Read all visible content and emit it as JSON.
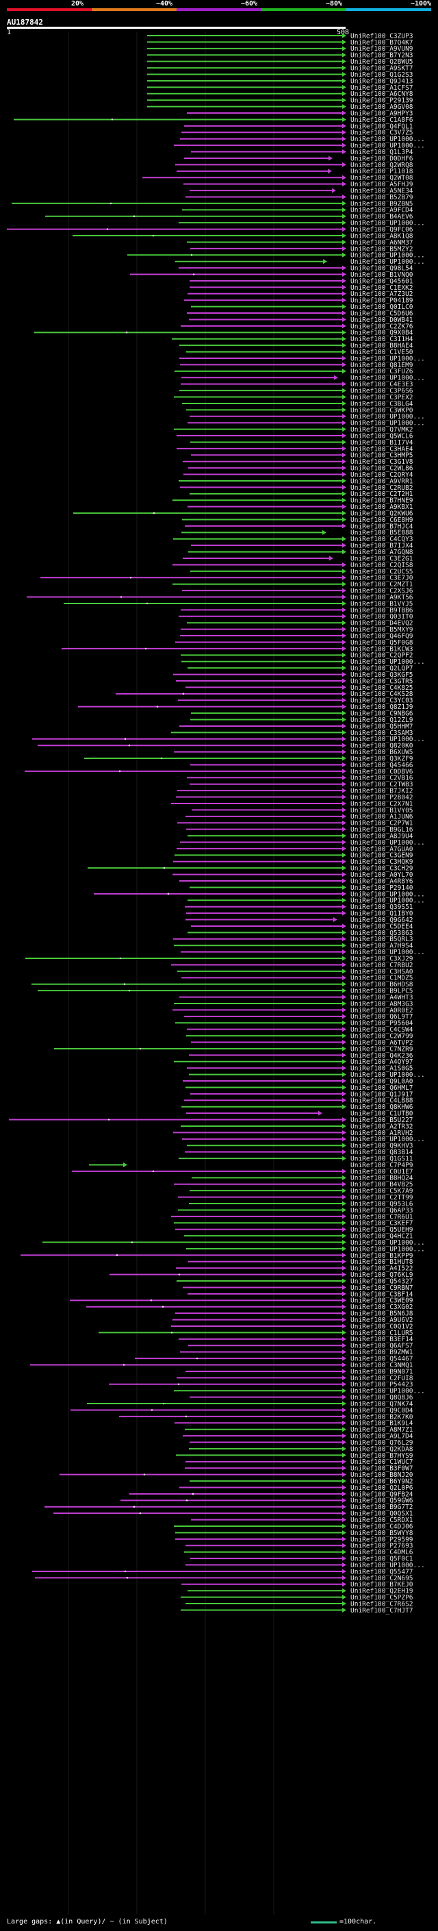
{
  "colorbar": {
    "segments": [
      {
        "label": "20%",
        "color": "#e0102a"
      },
      {
        "label": "~40%",
        "color": "#e0781e"
      },
      {
        "label": "~60%",
        "color": "#a020c8"
      },
      {
        "label": "~80%",
        "color": "#20b020"
      },
      {
        "label": "~100%",
        "color": "#10b0e0"
      }
    ]
  },
  "query": {
    "id": "AU187842",
    "start": "1",
    "end": "508"
  },
  "colors": {
    "hit_green": "#49c93b",
    "hit_magenta": "#c43ed6",
    "label": "#e6e6e6",
    "scale": "#30c08a"
  },
  "hits": [
    "UniRef100_C3ZUP3",
    "UniRef100_B7Q4K7",
    "UniRef100_A9VUN9",
    "UniRef100_B7Y2N3",
    "UniRef100_Q2BWU5",
    "UniRef100_A9SKT7",
    "UniRef100_Q1G2S3",
    "UniRef100_Q9J413",
    "UniRef100_A1CFS7",
    "UniRef100_A6CNY8",
    "UniRef100_P29139",
    "UniRef100_A9GV08",
    "UniRef100_A9HPY3",
    "UniRef100_C1A8F6",
    "UniRef100_Q4FQL1",
    "UniRef100_C3V7Z5",
    "UniRef100_UP1000...",
    "UniRef100_UP1000...",
    "UniRef100_Q1L3P4",
    "UniRef100_D0DHF6",
    "UniRef100_Q2WRQ8",
    "UniRef100_P11018",
    "UniRef100_Q2WT08",
    "UniRef100_A5FHJ9",
    "UniRef100_A5NE34",
    "UniRef100_B5ZB79",
    "UniRef100_B9ZBN5",
    "UniRef100_A9FCD4",
    "UniRef100_B4AEV6",
    "UniRef100_UP1000...",
    "UniRef100_Q9FC06",
    "UniRef100_A8K1Q8",
    "UniRef100_A6NM37",
    "UniRef100_B5MZY2",
    "UniRef100_UP1000...",
    "UniRef100_UP1000...",
    "UniRef100_Q98L54",
    "UniRef100_B1VNQ0",
    "UniRef100_Q45601",
    "UniRef100_C1EXK2",
    "UniRef100_A7Z3U2",
    "UniRef100_P04189",
    "UniRef100_Q0ILC0",
    "UniRef100_C5D6U6",
    "UniRef100_D0WB41",
    "UniRef100_C2ZK76",
    "UniRef100_Q9X0B4",
    "UniRef100_C3I1H4",
    "UniRef100_B8HAE4",
    "UniRef100_C1VE50",
    "UniRef100_UP1000...",
    "UniRef100_Q81EM9",
    "UniRef100_C3FUZ6",
    "UniRef100_UP1000...",
    "UniRef100_C4E3E3",
    "UniRef100_C3P6S6",
    "UniRef100_C3PEX2",
    "UniRef100_C3BLG4",
    "UniRef100_C3WKP0",
    "UniRef100_UP1000...",
    "UniRef100_UP1000...",
    "UniRef100_Q7VMK2",
    "UniRef100_Q5WCL6",
    "UniRef100_B1I7V4",
    "UniRef100_C3HAE4",
    "UniRef100_C3HMP5",
    "UniRef100_C3G1V8",
    "UniRef100_C2WL86",
    "UniRef100_C2QRY4",
    "UniRef100_A9VRR1",
    "UniRef100_C2RUB2",
    "UniRef100_C2T2H1",
    "UniRef100_B7HNE9",
    "UniRef100_A9KBX1",
    "UniRef100_Q2KWU6",
    "UniRef100_C6E8H9",
    "UniRef100_B7HJC4",
    "UniRef100_B5E888",
    "UniRef100_C4CQY3",
    "UniRef100_B7IJX4",
    "UniRef100_A7GQN8",
    "UniRef100_C3E2G1",
    "UniRef100_C2QIS8",
    "UniRef100_C2UCS5",
    "UniRef100_C3E7J0",
    "UniRef100_C2MZT1",
    "UniRef100_C2XSJ6",
    "UniRef100_A9KT56",
    "UniRef100_B1VYJ5",
    "UniRef100_B9TBB6",
    "UniRef100_Q03IT0",
    "UniRef100_D4EVQ2",
    "UniRef100_B5MXY9",
    "UniRef100_Q46FQ9",
    "UniRef100_Q5F0G8",
    "UniRef100_B1KCW3",
    "UniRef100_C2QPF2",
    "UniRef100_UP1000...",
    "UniRef100_Q2LQP7",
    "UniRef100_Q3KGF5",
    "UniRef100_C3GTR5",
    "UniRef100_C4K825",
    "UniRef100_C4KS28",
    "UniRef100_C3YC03",
    "UniRef100_Q8Z1J9",
    "UniRef100_C9NBG6",
    "UniRef100_Q12ZL9",
    "UniRef100_Q5HHM7",
    "UniRef100_C3SAM3",
    "UniRef100_UP1000...",
    "UniRef100_Q820K0",
    "UniRef100_B6XUW5",
    "UniRef100_Q3KZF9",
    "UniRef100_Q45466",
    "UniRef100_C0DBV6",
    "UniRef100_C2VB16",
    "UniRef100_C2TWB3",
    "UniRef100_B7JKI2",
    "UniRef100_P28042",
    "UniRef100_C2X7N1",
    "UniRef100_B1VY05",
    "UniRef100_A1JUN6",
    "UniRef100_C2P7W1",
    "UniRef100_B9GL16",
    "UniRef100_A8J9U4",
    "UniRef100_UP1000...",
    "UniRef100_A7GUA0",
    "UniRef100_C3GEN9",
    "UniRef100_C3HQK9",
    "UniRef100_C3CH29",
    "UniRef100_A0YL70",
    "UniRef100_A4R8Y6",
    "UniRef100_P29140",
    "UniRef100_UP1000...",
    "UniRef100_UP1000...",
    "UniRef100_Q39S51",
    "UniRef100_Q1IBY0",
    "UniRef100_Q9G642",
    "UniRef100_C5DEE4",
    "UniRef100_Q53863",
    "UniRef100_B5QRL3",
    "UniRef100_A7H9S4",
    "UniRef100_UP1000...",
    "UniRef100_C3XJ29",
    "UniRef100_C7RBU2",
    "UniRef100_C3HSA0",
    "UniRef100_C1MDZ5",
    "UniRef100_B6HDS8",
    "UniRef100_B9LPC5",
    "UniRef100_A4WHT3",
    "UniRef100_A8M3G3",
    "UniRef100_A0R0E2",
    "UniRef100_Q6L9T7",
    "UniRef100_P95604",
    "UniRef100_C4CSW4",
    "UniRef100_C2W799",
    "UniRef100_A6TVP2",
    "UniRef100_C7NZR9",
    "UniRef100_Q4K236",
    "UniRef100_A4QY97",
    "UniRef100_A1S0G5",
    "UniRef100_UP1000...",
    "UniRef100_Q9L0A0",
    "UniRef100_Q6HML7",
    "UniRef100_Q1J917",
    "UniRef100_C4LB88",
    "UniRef100_Q8KHW6",
    "UniRef100_C1UTB0",
    "UniRef100_B5U227",
    "UniRef100_A2TR32",
    "UniRef100_A1RVH2",
    "UniRef100_UP1000...",
    "UniRef100_Q9KHV3",
    "UniRef100_Q83B14",
    "UniRef100_Q1GS11",
    "UniRef100_C7P4P9",
    "UniRef100_C0U1E7",
    "UniRef100_B8HQ24",
    "UniRef100_B4VB25",
    "UniRef100_C5K7A9",
    "UniRef100_C2TT99",
    "UniRef100_Q953L6",
    "UniRef100_Q6AP33",
    "UniRef100_C7R6U1",
    "UniRef100_C3KEF7",
    "UniRef100_Q5UEH9",
    "UniRef100_Q4HCZ1",
    "UniRef100_UP1000...",
    "UniRef100_UP1000...",
    "UniRef100_B1KPP9",
    "UniRef100_B1HUT8",
    "UniRef100_A4I522",
    "UniRef100_Q76KL9",
    "UniRef100_Q54327",
    "UniRef100_C9RBN7",
    "UniRef100_C3BF14",
    "UniRef100_C3WE09",
    "UniRef100_C3XG02",
    "UniRef100_B5N6J8",
    "UniRef100_A9U6V2",
    "UniRef100_C0Q1V2",
    "UniRef100_C1LUR5",
    "UniRef100_B3EF14",
    "UniRef100_Q6AFS7",
    "UniRef100_B9ZMW1",
    "UniRef100_Q54467",
    "UniRef100_C3NMQ1",
    "UniRef100_B9N071",
    "UniRef100_C2FUI8",
    "UniRef100_P54423",
    "UniRef100_UP1000...",
    "UniRef100_Q8Q8J6",
    "UniRef100_Q7NK74",
    "UniRef100_Q9C0D4",
    "UniRef100_B2K7K0",
    "UniRef100_B1K9L4",
    "UniRef100_A8M7Z1",
    "UniRef100_A9L7D4",
    "UniRef100_Q76L29",
    "UniRef100_Q2KDA8",
    "UniRef100_B7HYS9",
    "UniRef100_C1WUC7",
    "UniRef100_B3F0W7",
    "UniRef100_B8NJ20",
    "UniRef100_B6Y9N2",
    "UniRef100_Q2L0P6",
    "UniRef100_Q9FB24",
    "UniRef100_Q59GW6",
    "UniRef100_B9G7T2",
    "UniRef100_Q0QSX1",
    "UniRef100_C5RDX1",
    "UniRef100_C4DJ06",
    "UniRef100_B5WYY8",
    "UniRef100_P29599",
    "UniRef100_P27693",
    "UniRef100_C4DML6",
    "UniRef100_Q5F0C1",
    "UniRef100_UP1000...",
    "UniRef100_Q55477",
    "UniRef100_C2N695",
    "UniRef100_B7KEJ0",
    "UniRef100_Q2EH19",
    "UniRef100_C5PZP6",
    "UniRef100_C7R6S2",
    "UniRef100_C7HJT7"
  ],
  "legend": {
    "large_gaps": "Large gaps: ▲(in Query)/ ~ (in Subject)",
    "scale_label": "=100char."
  }
}
